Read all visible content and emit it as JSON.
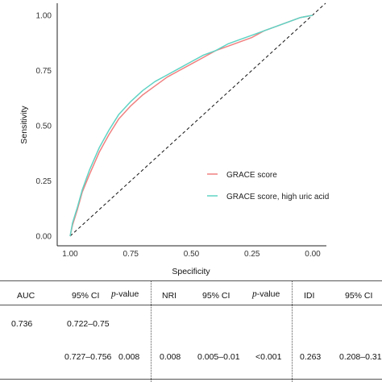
{
  "chart_data": {
    "type": "line",
    "xlabel": "Specificity",
    "ylabel": "Sensitivity",
    "x_reversed": true,
    "xlim": [
      1.0,
      0.0
    ],
    "ylim": [
      0.0,
      1.0
    ],
    "x_ticks": [
      "1.00",
      "0.75",
      "0.50",
      "0.25",
      "0.00"
    ],
    "y_ticks": [
      "0.00",
      "0.25",
      "0.50",
      "0.75",
      "1.00"
    ],
    "grid": false,
    "legend_position": "bottom-right",
    "series": [
      {
        "name": "GRACE score",
        "color": "#f08080",
        "specificity": [
          1.0,
          0.99,
          0.97,
          0.95,
          0.92,
          0.88,
          0.84,
          0.8,
          0.75,
          0.7,
          0.65,
          0.6,
          0.55,
          0.5,
          0.45,
          0.4,
          0.35,
          0.3,
          0.25,
          0.2,
          0.15,
          0.1,
          0.05,
          0.0
        ],
        "sensitivity": [
          0.0,
          0.05,
          0.12,
          0.2,
          0.28,
          0.38,
          0.46,
          0.53,
          0.59,
          0.64,
          0.68,
          0.72,
          0.75,
          0.78,
          0.81,
          0.84,
          0.86,
          0.88,
          0.9,
          0.93,
          0.95,
          0.97,
          0.99,
          1.0
        ]
      },
      {
        "name": "GRACE score, high uric acid",
        "color": "#5fd3c4",
        "specificity": [
          1.0,
          0.99,
          0.97,
          0.95,
          0.92,
          0.88,
          0.84,
          0.8,
          0.75,
          0.7,
          0.65,
          0.6,
          0.55,
          0.5,
          0.45,
          0.4,
          0.35,
          0.3,
          0.25,
          0.2,
          0.15,
          0.1,
          0.05,
          0.0
        ],
        "sensitivity": [
          0.0,
          0.06,
          0.13,
          0.21,
          0.3,
          0.4,
          0.48,
          0.55,
          0.61,
          0.66,
          0.7,
          0.73,
          0.76,
          0.79,
          0.82,
          0.84,
          0.87,
          0.89,
          0.91,
          0.93,
          0.95,
          0.97,
          0.99,
          1.0
        ]
      }
    ],
    "reference_line": {
      "style": "dashed",
      "from": [
        1.0,
        0.0
      ],
      "to": [
        0.0,
        1.0
      ]
    }
  },
  "table": {
    "headers": {
      "auc": "AUC",
      "ci1": "95% CI",
      "p1": "p-value",
      "nri": "NRI",
      "ci2": "95% CI",
      "p2": "p-value",
      "idi": "IDI",
      "ci3": "95% CI"
    },
    "row1": {
      "auc": "0.736",
      "ci1": "0.722–0.75"
    },
    "row2": {
      "ci1": "0.727–0.756",
      "p1": "0.008",
      "nri": "0.008",
      "ci2": "0.005–0.01",
      "p2": "<0.001",
      "idi": "0.263",
      "ci3": "0.208–0.31"
    }
  }
}
